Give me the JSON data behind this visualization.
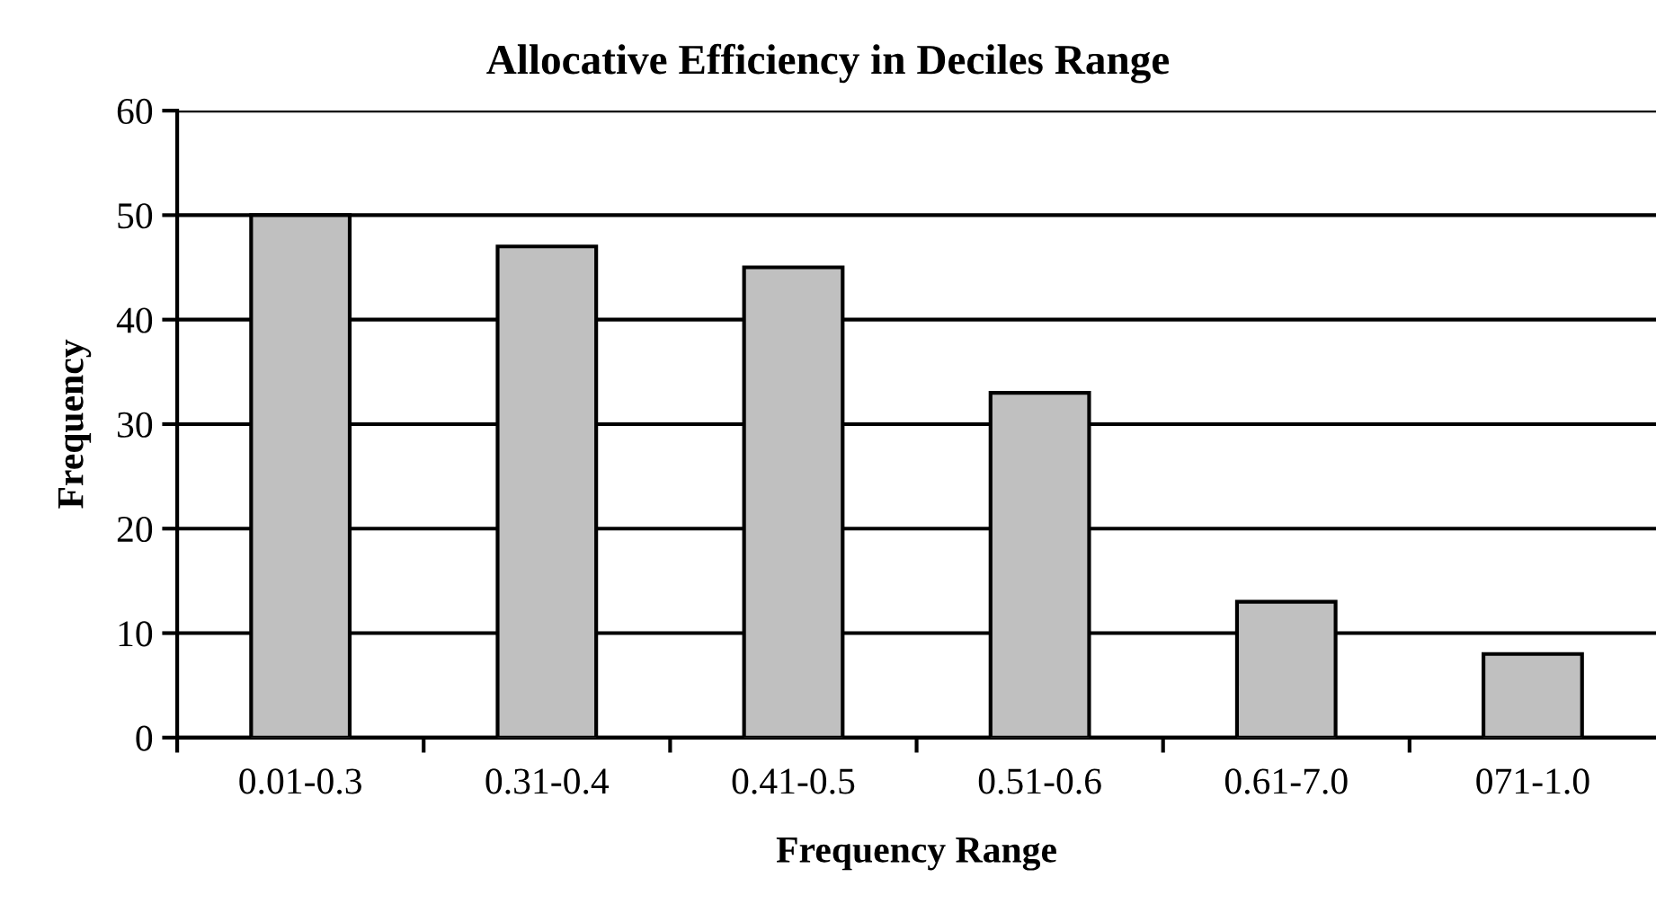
{
  "chart_data": {
    "type": "bar",
    "title": "Allocative Efficiency in Deciles Range",
    "xlabel": "Frequency Range",
    "ylabel": "Frequency",
    "categories": [
      "0.01-0.3",
      "0.31-0.4",
      "0.41-0.5",
      "0.51-0.6",
      "0.61-7.0",
      "071-1.0"
    ],
    "values": [
      50,
      47,
      45,
      33,
      13,
      8
    ],
    "color": "#c0c0c0",
    "ylim": [
      0,
      60
    ],
    "yticks": [
      0,
      10,
      20,
      30,
      40,
      50,
      60
    ],
    "grid": "y",
    "legend": false
  }
}
